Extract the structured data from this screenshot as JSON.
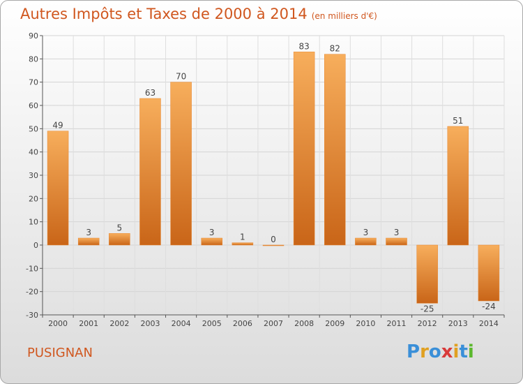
{
  "header": {
    "title": "Autres Impôts et Taxes de 2000 à 2014",
    "unit": "(en milliers d'€)"
  },
  "footer": {
    "commune": "PUSIGNAN",
    "logo_letters": [
      "P",
      "r",
      "o",
      "x",
      "i",
      "t",
      "i"
    ],
    "logo_colors": [
      "#3a8fd8",
      "#e0a020",
      "#3a8fd8",
      "#d83a3a",
      "#e0a020",
      "#3a8fd8",
      "#5cb82e"
    ]
  },
  "chart_data": {
    "type": "bar",
    "title": "Autres Impôts et Taxes de 2000 à 2014",
    "subtitle": "(en milliers d'€)",
    "xlabel": "",
    "ylabel": "",
    "categories": [
      "2000",
      "2001",
      "2002",
      "2003",
      "2004",
      "2005",
      "2006",
      "2007",
      "2008",
      "2009",
      "2010",
      "2011",
      "2012",
      "2013",
      "2014"
    ],
    "values": [
      49,
      3,
      5,
      63,
      70,
      3,
      1,
      0,
      83,
      82,
      3,
      3,
      -25,
      51,
      -24
    ],
    "ylim": [
      -30,
      90
    ],
    "yticks": [
      -30,
      -20,
      -10,
      0,
      10,
      20,
      30,
      40,
      50,
      60,
      70,
      80,
      90
    ],
    "grid": true,
    "bar_color": "#e8862f",
    "bar_color_dark": "#c96518",
    "bar_color_light": "#f7ae5c"
  }
}
